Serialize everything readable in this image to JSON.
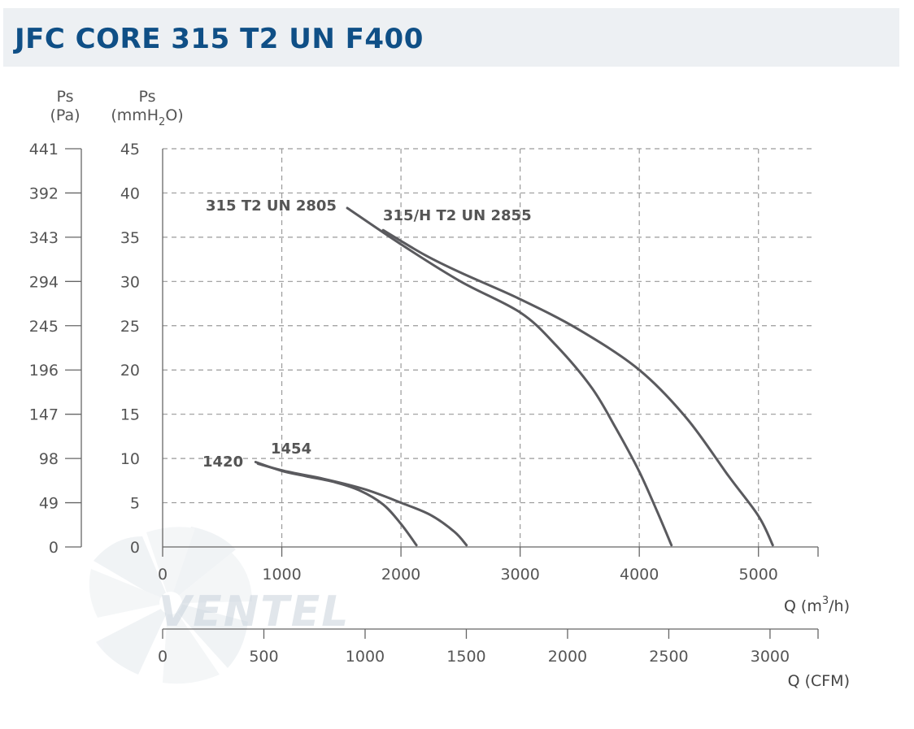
{
  "header": {
    "title": "JFC CORE 315 T2 UN F400"
  },
  "watermark": {
    "brand": "VENTEL"
  },
  "chart_data": {
    "type": "line",
    "axes": {
      "y_left_label": "Ps",
      "y_left_unit": "(Pa)",
      "y_right_label": "Ps",
      "y_right_unit_prefix": "(mmH",
      "y_right_unit_sub": "2",
      "y_right_unit_suffix": "O)",
      "y_pa_ticks": [
        "441",
        "392",
        "343",
        "294",
        "245",
        "196",
        "147",
        "98",
        "49",
        "0"
      ],
      "y_mm_ticks": [
        "45",
        "40",
        "35",
        "30",
        "25",
        "20",
        "15",
        "10",
        "5",
        "0"
      ],
      "ylim": [
        0,
        45
      ],
      "x_m3h_ticks": [
        "0",
        "1000",
        "2000",
        "3000",
        "4000",
        "5000"
      ],
      "x_m3h_label_prefix": "Q (m",
      "x_m3h_label_sup": "3",
      "x_m3h_label_suffix": "/h)",
      "xlim": [
        0,
        5500
      ],
      "x_cfm_ticks": [
        "0",
        "500",
        "1000",
        "1500",
        "2000",
        "2500",
        "3000"
      ],
      "x_cfm_label": "Q (CFM)",
      "grid": true
    },
    "series": [
      {
        "name": "315 T2 UN 2805",
        "x": [
          1550,
          2000,
          2500,
          3000,
          3300,
          3600,
          3800,
          4000,
          4150,
          4270
        ],
        "y": [
          38.3,
          34.2,
          30.0,
          26.5,
          22.8,
          18.0,
          13.5,
          8.5,
          4.0,
          0.2
        ]
      },
      {
        "name": "315/H T2 UN 2855",
        "x": [
          1850,
          2200,
          2500,
          3000,
          3500,
          4000,
          4400,
          4750,
          5000,
          5120
        ],
        "y": [
          35.8,
          33.0,
          31.0,
          28.0,
          24.5,
          20.0,
          14.5,
          8.0,
          3.5,
          0.2
        ]
      },
      {
        "name": "1420",
        "x": [
          780,
          1000,
          1200,
          1450,
          1650,
          1850,
          2000,
          2130
        ],
        "y": [
          9.6,
          8.6,
          8.0,
          7.3,
          6.4,
          4.8,
          2.6,
          0.2
        ]
      },
      {
        "name": "1454",
        "x": [
          800,
          1050,
          1350,
          1700,
          2000,
          2250,
          2450,
          2550
        ],
        "y": [
          9.4,
          8.5,
          7.7,
          6.5,
          5.0,
          3.6,
          1.7,
          0.2
        ]
      }
    ]
  }
}
